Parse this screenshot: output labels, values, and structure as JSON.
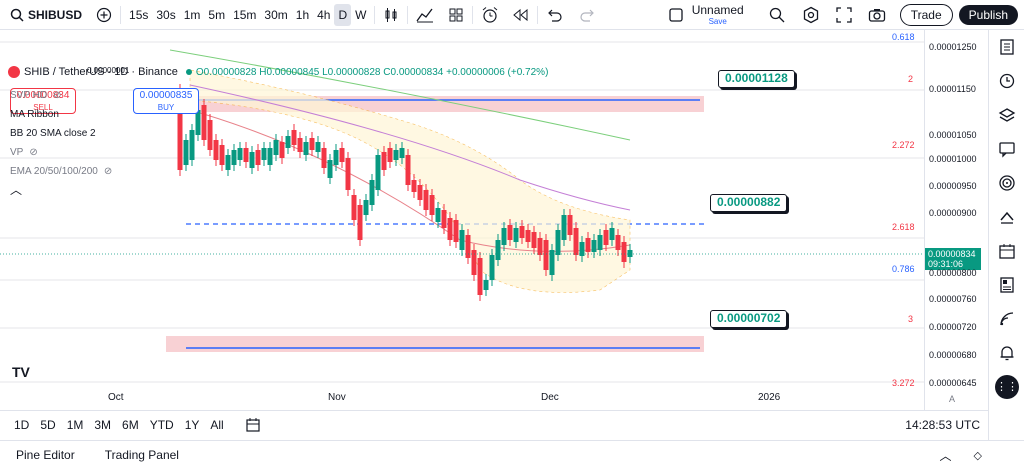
{
  "toolbar": {
    "symbol": "SHIBUSD",
    "intervals": [
      "15s",
      "30s",
      "1m",
      "5m",
      "15m",
      "30m",
      "1h",
      "4h",
      "D",
      "W"
    ],
    "active_interval": "D",
    "layout_name": "Unnamed",
    "layout_status": "Save",
    "trade_label": "Trade",
    "publish_label": "Publish"
  },
  "legend": {
    "pair": "SHIB / TetherUS · 1D · Binance",
    "ohlc": "O0.00000828 H0.00000845 L0.00000828 C0.00000834 +0.00000006 (+0.72%)",
    "indicators": [
      "SVP HD",
      "MA Ribbon",
      "BB 20 SMA close 2",
      "VP",
      "EMA 20/50/100/200"
    ]
  },
  "trade": {
    "sell_price": "0.00000834",
    "sell_label": "SELL",
    "spread": "0.00000001",
    "buy_price": "0.00000835",
    "buy_label": "BUY"
  },
  "price_axis": {
    "labels": [
      "0.00001250",
      "0.00001150",
      "0.00001050",
      "0.00001000",
      "0.00000950",
      "0.00000900",
      "0.00000800",
      "0.00000760",
      "0.00000720",
      "0.00000680",
      "0.00000645"
    ],
    "current_price": "0.00000834",
    "countdown": "09:31:06",
    "scale_mode": "A"
  },
  "fib_labels": [
    "0.618",
    "2",
    "2.272",
    "2.618",
    "0.786",
    "3",
    "3.272"
  ],
  "callouts": [
    "0.00001128",
    "0.00000882",
    "0.00000702"
  ],
  "time_axis": [
    "Oct",
    "Nov",
    "Dec",
    "2026"
  ],
  "ranges": [
    "1D",
    "5D",
    "1M",
    "3M",
    "6M",
    "YTD",
    "1Y",
    "All"
  ],
  "clock": "14:28:53 UTC",
  "panels": [
    "Pine Editor",
    "Trading Panel"
  ],
  "colors": {
    "up": "#089981",
    "down": "#f23645",
    "accent": "#2962ff",
    "zone": "#f7c9cc"
  }
}
